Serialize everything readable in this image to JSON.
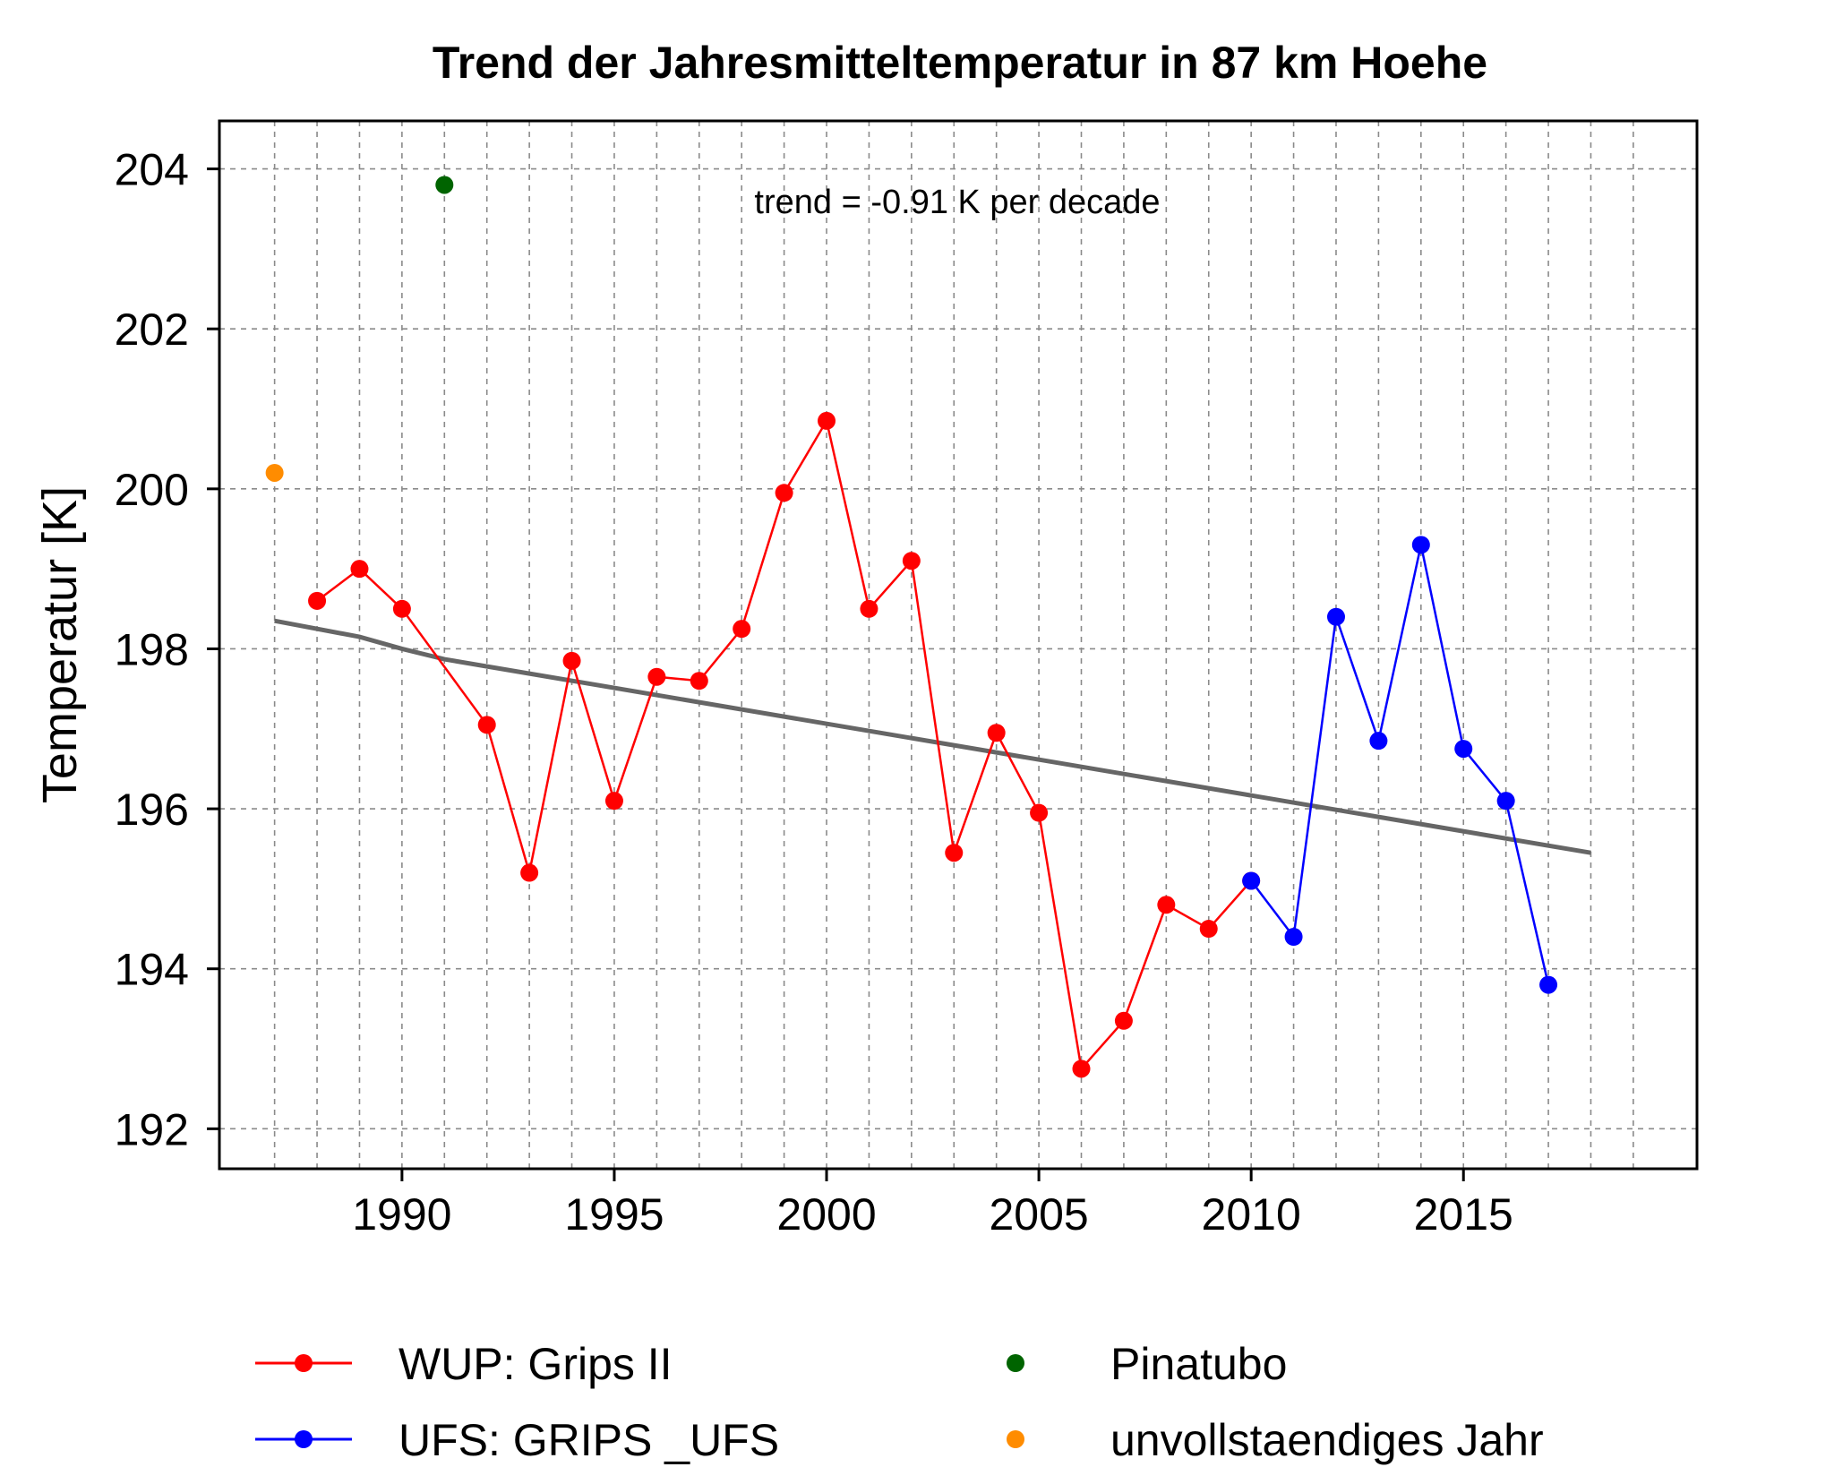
{
  "chart_data": {
    "type": "line",
    "title": "Trend der Jahresmitteltemperatur in 87 km Hoehe",
    "xlabel": "",
    "ylabel": "Temperatur [K]",
    "xlim": [
      1985.7,
      2020.5
    ],
    "ylim": [
      191.5,
      204.6
    ],
    "xticks": [
      1990,
      1995,
      2000,
      2005,
      2010,
      2015
    ],
    "yticks": [
      192,
      194,
      196,
      198,
      200,
      202,
      204
    ],
    "grid": true,
    "annotation": "trend = -0.91 K per decade",
    "legend_position": "bottom",
    "series": [
      {
        "name": "WUP: Grips II",
        "color": "#ff0000",
        "style": "line-with-markers",
        "points": [
          {
            "x": 1988,
            "y": 198.6
          },
          {
            "x": 1989,
            "y": 199.0
          },
          {
            "x": 1990,
            "y": 198.5
          },
          {
            "x": 1992,
            "y": 197.05
          },
          {
            "x": 1993,
            "y": 195.2
          },
          {
            "x": 1994,
            "y": 197.85
          },
          {
            "x": 1995,
            "y": 196.1
          },
          {
            "x": 1996,
            "y": 197.65
          },
          {
            "x": 1997,
            "y": 197.6
          },
          {
            "x": 1998,
            "y": 198.25
          },
          {
            "x": 1999,
            "y": 199.95
          },
          {
            "x": 2000,
            "y": 200.85
          },
          {
            "x": 2001,
            "y": 198.5
          },
          {
            "x": 2002,
            "y": 199.1
          },
          {
            "x": 2003,
            "y": 195.45
          },
          {
            "x": 2004,
            "y": 196.95
          },
          {
            "x": 2005,
            "y": 195.95
          },
          {
            "x": 2006,
            "y": 192.75
          },
          {
            "x": 2007,
            "y": 193.35
          },
          {
            "x": 2008,
            "y": 194.8
          },
          {
            "x": 2009,
            "y": 194.5
          },
          {
            "x": 2010,
            "y": 195.1
          }
        ]
      },
      {
        "name": "UFS: GRIPS _UFS",
        "color": "#0000ff",
        "style": "line-with-markers",
        "points": [
          {
            "x": 2010,
            "y": 195.1
          },
          {
            "x": 2011,
            "y": 194.4
          },
          {
            "x": 2012,
            "y": 198.4
          },
          {
            "x": 2013,
            "y": 196.85
          },
          {
            "x": 2014,
            "y": 199.3
          },
          {
            "x": 2015,
            "y": 196.75
          },
          {
            "x": 2016,
            "y": 196.1
          },
          {
            "x": 2017,
            "y": 193.8
          }
        ]
      },
      {
        "name": "Pinatubo",
        "color": "#006400",
        "style": "markers",
        "points": [
          {
            "x": 1991,
            "y": 203.8
          }
        ]
      },
      {
        "name": "unvollstaendiges Jahr",
        "color": "#ff8c00",
        "style": "markers",
        "points": [
          {
            "x": 1987,
            "y": 200.2
          }
        ]
      }
    ],
    "trend_line": {
      "color": "#666666",
      "points": [
        {
          "x": 1987,
          "y": 198.35
        },
        {
          "x": 1989,
          "y": 198.15
        },
        {
          "x": 1990,
          "y": 198.0
        },
        {
          "x": 1991,
          "y": 197.87
        },
        {
          "x": 2018,
          "y": 195.45
        }
      ]
    }
  }
}
